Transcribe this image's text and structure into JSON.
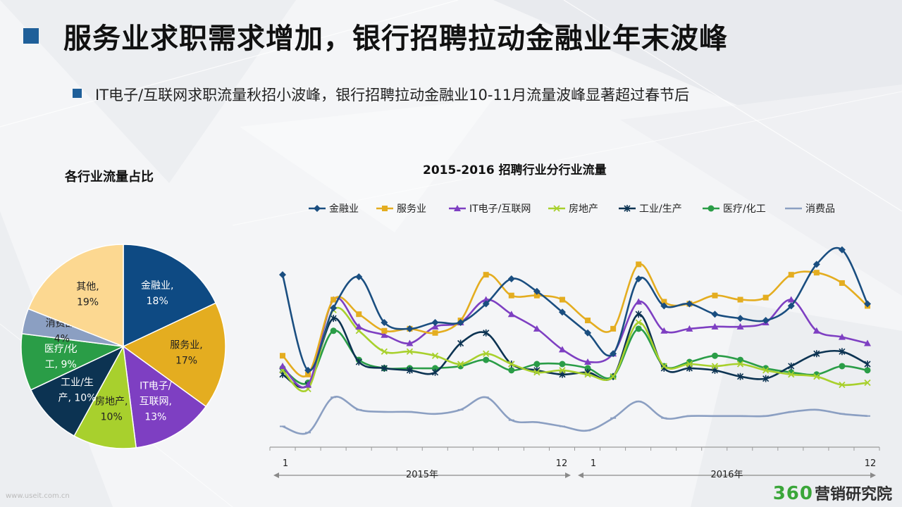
{
  "header": {
    "title": "服务业求职需求增加，银行招聘拉动金融业年末波峰",
    "subtitle": "IT电子/互联网求职流量秋招小波峰，银行招聘拉动金融业10-11月流量波峰显著超过春节后"
  },
  "footer": {
    "watermark": "www.useit.com.cn",
    "logo_number": "360",
    "logo_text": "营销研究院"
  },
  "chart_data": [
    {
      "type": "pie",
      "title": "各行业流量占比",
      "slices": [
        {
          "label": "金融业",
          "line1": "金融业,",
          "line2": "18%",
          "value": 18,
          "color": "#0e4a83",
          "text_color": "#ffffff"
        },
        {
          "label": "服务业",
          "line1": "服务业,",
          "line2": "17%",
          "value": 17,
          "color": "#e4ad20",
          "text_color": "#222222"
        },
        {
          "label": "IT电子/互联网",
          "line1": "IT电子/",
          "line2": "互联网,",
          "line3": "13%",
          "value": 13,
          "color": "#7e3fc2",
          "text_color": "#ffffff"
        },
        {
          "label": "房地产",
          "line1": "房地产,",
          "line2": "10%",
          "value": 10,
          "color": "#a8d02d",
          "text_color": "#222222"
        },
        {
          "label": "工业/生产",
          "line1": "工业/生",
          "line2": "产, 10%",
          "value": 10,
          "color": "#0c3352",
          "text_color": "#ffffff"
        },
        {
          "label": "医疗/化工",
          "line1": "医疗/化",
          "line2": "工, 9%",
          "value": 9,
          "color": "#2a9d47",
          "text_color": "#ffffff"
        },
        {
          "label": "消费品",
          "line1": "消费品,",
          "line2": "4%",
          "value": 4,
          "color": "#8b9fc2",
          "text_color": "#222222"
        },
        {
          "label": "其他",
          "line1": "其他,",
          "line2": "19%",
          "value": 19,
          "color": "#fcd891",
          "text_color": "#222222"
        }
      ]
    },
    {
      "type": "line",
      "title": "2015-2016 招聘行业分行业流量",
      "x_tick_labels": [
        "1",
        "12",
        "1",
        "12"
      ],
      "year_labels": [
        "2015年",
        "2016年"
      ],
      "y_range": [
        0,
        1
      ],
      "grid": false,
      "legend_position": "top",
      "series": [
        {
          "name": "金融业",
          "color": "#1a4e80",
          "marker": "diamond",
          "values": [
            0.83,
            0.37,
            0.67,
            0.82,
            0.6,
            0.57,
            0.6,
            0.6,
            0.69,
            0.81,
            0.75,
            0.65,
            0.55,
            0.45,
            0.81,
            0.68,
            0.69,
            0.64,
            0.62,
            0.61,
            0.68,
            0.88,
            0.95,
            0.69
          ]
        },
        {
          "name": "服务业",
          "color": "#e4ad20",
          "marker": "square",
          "values": [
            0.44,
            0.35,
            0.71,
            0.64,
            0.56,
            0.57,
            0.55,
            0.61,
            0.83,
            0.73,
            0.73,
            0.71,
            0.61,
            0.57,
            0.88,
            0.7,
            0.69,
            0.73,
            0.71,
            0.72,
            0.83,
            0.84,
            0.79,
            0.68
          ]
        },
        {
          "name": "IT电子/互联网",
          "color": "#7e3fc2",
          "marker": "triangle",
          "values": [
            0.39,
            0.3,
            0.71,
            0.58,
            0.54,
            0.5,
            0.58,
            0.6,
            0.71,
            0.64,
            0.57,
            0.47,
            0.41,
            0.45,
            0.7,
            0.56,
            0.57,
            0.58,
            0.58,
            0.6,
            0.71,
            0.56,
            0.53,
            0.5
          ]
        },
        {
          "name": "房地产",
          "color": "#a8d02d",
          "marker": "x",
          "values": [
            0.37,
            0.28,
            0.66,
            0.56,
            0.46,
            0.46,
            0.44,
            0.4,
            0.45,
            0.4,
            0.36,
            0.37,
            0.35,
            0.34,
            0.6,
            0.39,
            0.4,
            0.39,
            0.4,
            0.37,
            0.35,
            0.34,
            0.3,
            0.31
          ]
        },
        {
          "name": "工业/生产",
          "color": "#0c3352",
          "marker": "star",
          "values": [
            0.35,
            0.3,
            0.62,
            0.41,
            0.38,
            0.37,
            0.36,
            0.5,
            0.55,
            0.4,
            0.37,
            0.35,
            0.36,
            0.34,
            0.64,
            0.38,
            0.38,
            0.37,
            0.34,
            0.33,
            0.39,
            0.45,
            0.46,
            0.4
          ]
        },
        {
          "name": "医疗/化工",
          "color": "#2a9d47",
          "marker": "circle",
          "values": [
            0.38,
            0.31,
            0.56,
            0.42,
            0.38,
            0.38,
            0.38,
            0.39,
            0.42,
            0.37,
            0.4,
            0.4,
            0.38,
            0.34,
            0.57,
            0.39,
            0.41,
            0.44,
            0.42,
            0.38,
            0.36,
            0.35,
            0.39,
            0.37
          ]
        },
        {
          "name": "消费品",
          "color": "#8b9fc2",
          "marker": "dash",
          "values": [
            0.1,
            0.07,
            0.24,
            0.18,
            0.17,
            0.17,
            0.16,
            0.18,
            0.24,
            0.13,
            0.12,
            0.1,
            0.08,
            0.14,
            0.22,
            0.14,
            0.15,
            0.15,
            0.15,
            0.15,
            0.17,
            0.18,
            0.16,
            0.15
          ]
        }
      ]
    }
  ]
}
